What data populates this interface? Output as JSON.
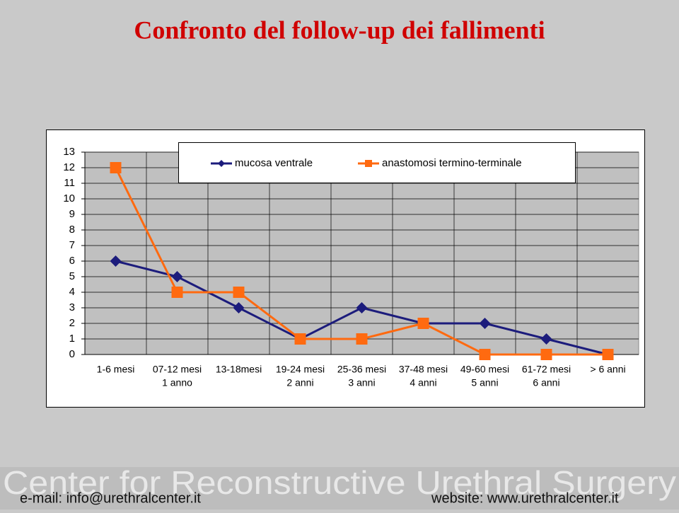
{
  "chart_data": {
    "type": "line",
    "title": "Confronto del follow-up dei fallimenti",
    "categories": [
      [
        "1-6 mesi"
      ],
      [
        "07-12 mesi",
        "1 anno"
      ],
      [
        "13-18mesi"
      ],
      [
        "19-24 mesi",
        "2 anni"
      ],
      [
        "25-36 mesi",
        "3 anni"
      ],
      [
        "37-48 mesi",
        "4 anni"
      ],
      [
        "49-60 mesi",
        "5 anni"
      ],
      [
        "61-72 mesi",
        "6 anni"
      ],
      [
        "> 6 anni"
      ]
    ],
    "series": [
      {
        "name": "mucosa ventrale",
        "color": "#1c1c7c",
        "marker": "diamond",
        "values": [
          6,
          5,
          3,
          1,
          3,
          2,
          2,
          1,
          0
        ]
      },
      {
        "name": "anastomosi termino-terminale",
        "color": "#ff6a10",
        "marker": "square",
        "values": [
          12,
          4,
          4,
          1,
          1,
          2,
          0,
          0,
          0
        ]
      }
    ],
    "ylim": [
      0,
      13
    ],
    "yticks": [
      0,
      1,
      2,
      3,
      4,
      5,
      6,
      7,
      8,
      9,
      10,
      11,
      12,
      13
    ],
    "grid": true,
    "legend": "top"
  },
  "footer": {
    "banner": "Center for Reconstructive Urethral Surgery",
    "email": "e-mail: info@urethralcenter.it",
    "website": "website: www.urethralcenter.it"
  }
}
